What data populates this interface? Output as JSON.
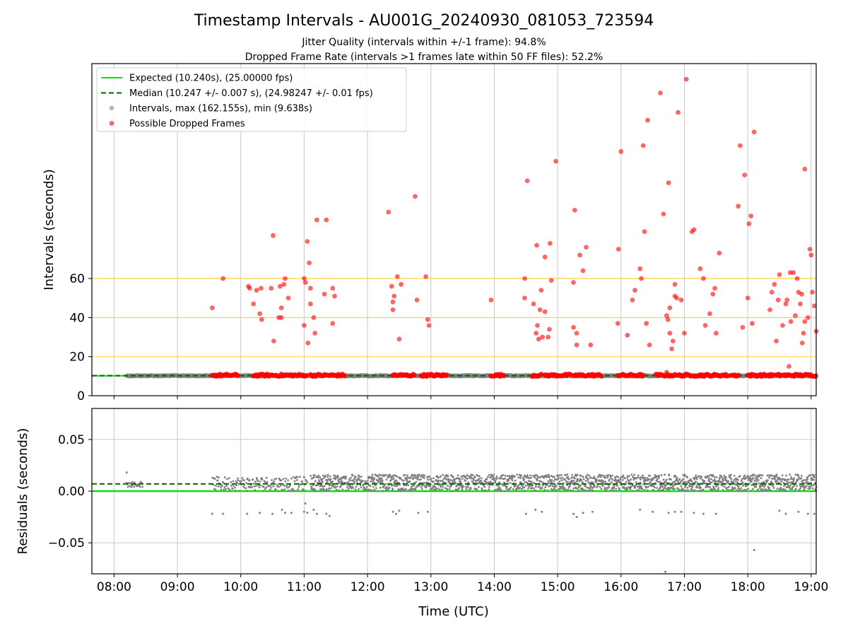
{
  "chart_data": {
    "title": "Timestamp Intervals - AU001G_20240930_081053_723594",
    "subtitles": [
      "Jitter Quality (intervals within +/-1 frame): 94.8%",
      "Dropped Frame Rate (intervals >1 frames late within 50 FF files): 52.2%"
    ],
    "xlabel": "Time (UTC)",
    "x_ticks": [
      "08:00",
      "09:00",
      "10:00",
      "11:00",
      "12:00",
      "13:00",
      "14:00",
      "15:00",
      "16:00",
      "17:00",
      "18:00",
      "19:00"
    ],
    "xlim_hours": [
      7.65,
      19.08
    ],
    "colors": {
      "expected": "#00e600",
      "median": "#006400",
      "intervals": "#808080",
      "dropped": "#ff0000",
      "threshold": "#ffd24d",
      "grid": "#c8c8c8"
    },
    "panels": [
      {
        "type": "scatter",
        "ylabel": "Intervals (seconds)",
        "ylim": [
          0,
          170
        ],
        "y_ticks": [
          "0",
          "20",
          "40",
          "60"
        ],
        "threshold_lines": [
          20,
          40,
          60
        ],
        "expected_value": 10.24,
        "median_value": 10.247,
        "legend_position": "upper-left",
        "legend": [
          {
            "label": "Expected (10.240s), (25.00000 fps)",
            "style": "solid-line"
          },
          {
            "label": "Median (10.247 +/- 0.007 s), (24.98247 +/- 0.01 fps)",
            "style": "dashed-line"
          },
          {
            "label": "Intervals, max (162.155s), min (9.638s)",
            "style": "gray-dot"
          },
          {
            "label": "Possible Dropped Frames",
            "style": "red-dot"
          }
        ],
        "normal_interval_ranges_hours": [
          [
            8.2,
            9.55
          ],
          [
            9.55,
            19.08
          ]
        ],
        "dropped_baseline_ranges_hours": [
          [
            9.55,
            9.95
          ],
          [
            10.2,
            11.05
          ],
          [
            11.1,
            11.65
          ],
          [
            12.4,
            12.75
          ],
          [
            12.85,
            13.25
          ],
          [
            13.95,
            14.15
          ],
          [
            14.6,
            14.75
          ],
          [
            14.8,
            15.2
          ],
          [
            15.25,
            15.7
          ],
          [
            15.95,
            16.35
          ],
          [
            16.55,
            16.85
          ],
          [
            16.9,
            17.1
          ],
          [
            17.15,
            17.7
          ],
          [
            17.75,
            17.85
          ],
          [
            18.0,
            18.4
          ],
          [
            18.45,
            19.08
          ]
        ],
        "dropped_frames": [
          [
            9.55,
            45
          ],
          [
            9.72,
            60
          ],
          [
            10.12,
            56
          ],
          [
            10.14,
            55
          ],
          [
            10.2,
            47
          ],
          [
            10.25,
            54
          ],
          [
            10.3,
            42
          ],
          [
            10.33,
            39
          ],
          [
            10.32,
            55
          ],
          [
            10.48,
            55
          ],
          [
            10.51,
            82
          ],
          [
            10.52,
            28
          ],
          [
            10.6,
            40
          ],
          [
            10.64,
            40
          ],
          [
            10.62,
            56
          ],
          [
            10.64,
            45
          ],
          [
            10.68,
            57
          ],
          [
            10.7,
            60
          ],
          [
            10.75,
            50
          ],
          [
            11.0,
            60
          ],
          [
            11.02,
            58
          ],
          [
            11.0,
            36
          ],
          [
            11.05,
            79
          ],
          [
            11.06,
            27
          ],
          [
            11.08,
            68
          ],
          [
            11.1,
            55
          ],
          [
            11.1,
            47
          ],
          [
            11.15,
            40
          ],
          [
            11.17,
            32
          ],
          [
            11.2,
            90
          ],
          [
            11.32,
            52
          ],
          [
            11.35,
            90
          ],
          [
            11.45,
            55
          ],
          [
            11.45,
            37
          ],
          [
            11.48,
            51
          ],
          [
            12.33,
            94
          ],
          [
            12.38,
            56
          ],
          [
            12.4,
            48
          ],
          [
            12.4,
            44
          ],
          [
            12.42,
            51
          ],
          [
            12.47,
            61
          ],
          [
            12.5,
            29
          ],
          [
            12.53,
            57
          ],
          [
            12.75,
            102
          ],
          [
            12.78,
            49
          ],
          [
            12.92,
            61
          ],
          [
            12.95,
            39
          ],
          [
            12.97,
            36
          ],
          [
            13.95,
            49
          ],
          [
            14.48,
            60
          ],
          [
            14.48,
            50
          ],
          [
            14.52,
            110
          ],
          [
            14.62,
            47
          ],
          [
            14.66,
            32
          ],
          [
            14.67,
            77
          ],
          [
            14.68,
            36
          ],
          [
            14.7,
            29
          ],
          [
            14.72,
            44
          ],
          [
            14.74,
            54
          ],
          [
            14.76,
            30
          ],
          [
            14.8,
            71
          ],
          [
            14.8,
            43
          ],
          [
            14.85,
            30
          ],
          [
            14.88,
            78
          ],
          [
            14.87,
            34
          ],
          [
            14.9,
            59
          ],
          [
            14.97,
            120
          ],
          [
            15.25,
            35
          ],
          [
            15.25,
            58
          ],
          [
            15.27,
            95
          ],
          [
            15.3,
            26
          ],
          [
            15.3,
            32
          ],
          [
            15.35,
            72
          ],
          [
            15.4,
            64
          ],
          [
            15.45,
            76
          ],
          [
            15.52,
            26
          ],
          [
            15.95,
            37
          ],
          [
            15.96,
            75
          ],
          [
            16.0,
            125
          ],
          [
            16.1,
            31
          ],
          [
            16.18,
            49
          ],
          [
            16.22,
            54
          ],
          [
            16.3,
            65
          ],
          [
            16.32,
            60
          ],
          [
            16.35,
            128
          ],
          [
            16.37,
            84
          ],
          [
            16.4,
            37
          ],
          [
            16.42,
            141
          ],
          [
            16.45,
            26
          ],
          [
            16.62,
            155
          ],
          [
            16.67,
            93
          ],
          [
            16.72,
            12
          ],
          [
            16.72,
            41
          ],
          [
            16.74,
            39
          ],
          [
            16.75,
            109
          ],
          [
            16.77,
            32
          ],
          [
            16.77,
            45
          ],
          [
            16.82,
            28
          ],
          [
            16.8,
            24
          ],
          [
            16.85,
            51
          ],
          [
            16.85,
            57
          ],
          [
            16.88,
            50
          ],
          [
            16.9,
            145
          ],
          [
            16.95,
            49
          ],
          [
            17.0,
            32
          ],
          [
            17.03,
            162
          ],
          [
            17.12,
            84
          ],
          [
            17.15,
            85
          ],
          [
            17.25,
            65
          ],
          [
            17.3,
            60
          ],
          [
            17.33,
            36
          ],
          [
            17.4,
            42
          ],
          [
            17.45,
            52
          ],
          [
            17.48,
            55
          ],
          [
            17.5,
            32
          ],
          [
            17.55,
            73
          ],
          [
            17.85,
            97
          ],
          [
            17.88,
            128
          ],
          [
            17.92,
            35
          ],
          [
            17.95,
            113
          ],
          [
            18.0,
            50
          ],
          [
            18.02,
            88
          ],
          [
            18.05,
            92
          ],
          [
            18.07,
            37
          ],
          [
            18.1,
            135
          ],
          [
            18.35,
            44
          ],
          [
            18.38,
            53
          ],
          [
            18.42,
            57
          ],
          [
            18.45,
            28
          ],
          [
            18.48,
            49
          ],
          [
            18.5,
            62
          ],
          [
            18.55,
            36
          ],
          [
            18.6,
            47
          ],
          [
            18.62,
            49
          ],
          [
            18.65,
            15
          ],
          [
            18.67,
            63
          ],
          [
            18.68,
            38
          ],
          [
            18.72,
            63
          ],
          [
            18.75,
            41
          ],
          [
            18.78,
            60
          ],
          [
            18.8,
            53
          ],
          [
            18.83,
            47
          ],
          [
            18.85,
            52
          ],
          [
            18.86,
            27
          ],
          [
            18.88,
            32
          ],
          [
            18.9,
            116
          ],
          [
            18.9,
            38
          ],
          [
            18.95,
            40
          ],
          [
            18.98,
            75
          ],
          [
            19.0,
            72
          ],
          [
            19.02,
            53
          ],
          [
            19.05,
            46
          ],
          [
            19.08,
            33
          ]
        ]
      },
      {
        "type": "scatter",
        "ylabel": "Residuals (seconds)",
        "ylim": [
          -0.08,
          0.08
        ],
        "y_ticks": [
          "0.05",
          "0.00",
          "−0.05"
        ],
        "y_tick_values": [
          0.05,
          0.0,
          -0.05
        ],
        "expected_value": 0.0,
        "median_value": 0.007,
        "outliers": [
          [
            8.2,
            0.018
          ],
          [
            9.55,
            -0.022
          ],
          [
            9.72,
            -0.022
          ],
          [
            10.1,
            -0.022
          ],
          [
            10.3,
            -0.021
          ],
          [
            10.5,
            -0.022
          ],
          [
            10.65,
            -0.018
          ],
          [
            10.7,
            -0.021
          ],
          [
            10.8,
            -0.021
          ],
          [
            11.0,
            -0.02
          ],
          [
            11.02,
            -0.012
          ],
          [
            11.05,
            -0.021
          ],
          [
            11.15,
            -0.018
          ],
          [
            11.2,
            -0.022
          ],
          [
            11.35,
            -0.022
          ],
          [
            11.4,
            -0.024
          ],
          [
            12.4,
            -0.02
          ],
          [
            12.45,
            -0.022
          ],
          [
            12.5,
            -0.019
          ],
          [
            12.8,
            -0.021
          ],
          [
            12.95,
            -0.02
          ],
          [
            14.5,
            -0.022
          ],
          [
            14.65,
            -0.018
          ],
          [
            14.75,
            -0.02
          ],
          [
            15.25,
            -0.022
          ],
          [
            15.3,
            -0.025
          ],
          [
            15.4,
            -0.021
          ],
          [
            15.55,
            -0.02
          ],
          [
            16.3,
            -0.018
          ],
          [
            16.5,
            -0.02
          ],
          [
            16.7,
            -0.078
          ],
          [
            16.75,
            -0.021
          ],
          [
            16.85,
            -0.02
          ],
          [
            16.95,
            -0.02
          ],
          [
            17.15,
            -0.021
          ],
          [
            17.3,
            -0.022
          ],
          [
            17.5,
            -0.022
          ],
          [
            18.1,
            -0.057
          ],
          [
            18.5,
            -0.019
          ],
          [
            18.6,
            -0.022
          ],
          [
            18.8,
            -0.02
          ],
          [
            18.95,
            -0.022
          ],
          [
            19.05,
            -0.022
          ]
        ]
      }
    ]
  }
}
